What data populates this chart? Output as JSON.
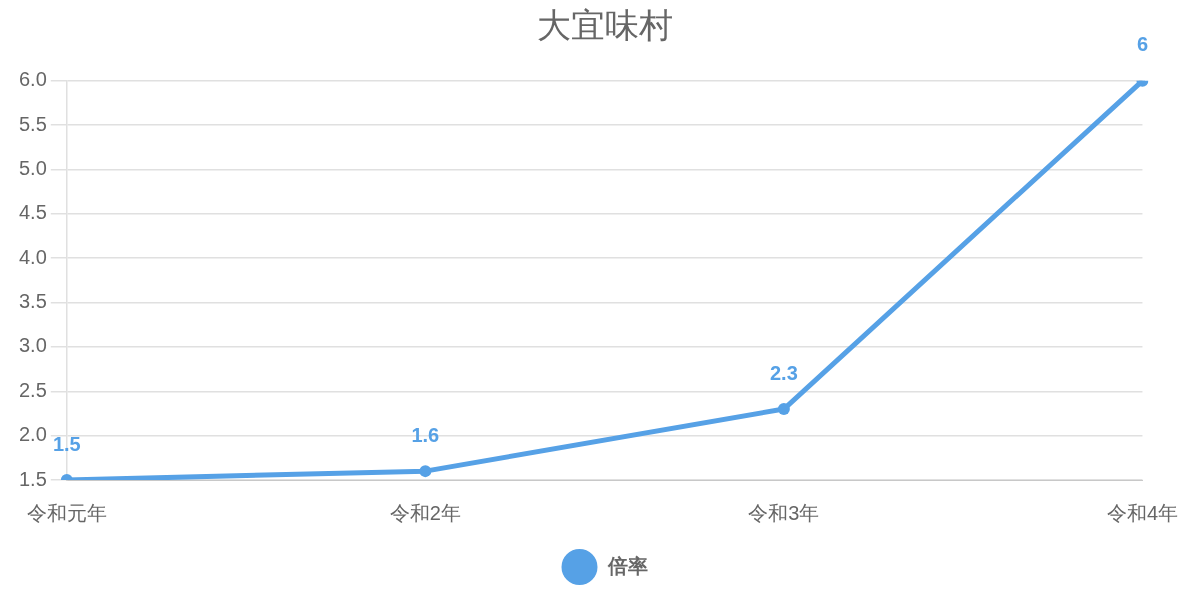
{
  "chart_data": {
    "type": "line",
    "title": "大宜味村",
    "categories": [
      "令和元年",
      "令和2年",
      "令和3年",
      "令和4年"
    ],
    "series": [
      {
        "name": "倍率",
        "color": "#56a1e6",
        "values": [
          1.5,
          1.6,
          2.3,
          6
        ]
      }
    ],
    "ylim": [
      1.5,
      6
    ],
    "yticks": [
      1.5,
      {
        "value": 2,
        "label": "2.0"
      },
      2.5,
      {
        "value": 3,
        "label": "3.0"
      },
      3.5,
      {
        "value": 4,
        "label": "4.0"
      },
      4.5,
      {
        "value": 5,
        "label": "5.0"
      },
      5.5,
      {
        "value": 6,
        "label": "6.0"
      }
    ],
    "grid": "y",
    "legend": "bottom",
    "marker": "circle",
    "line_style": "solid",
    "data_labels": true
  }
}
